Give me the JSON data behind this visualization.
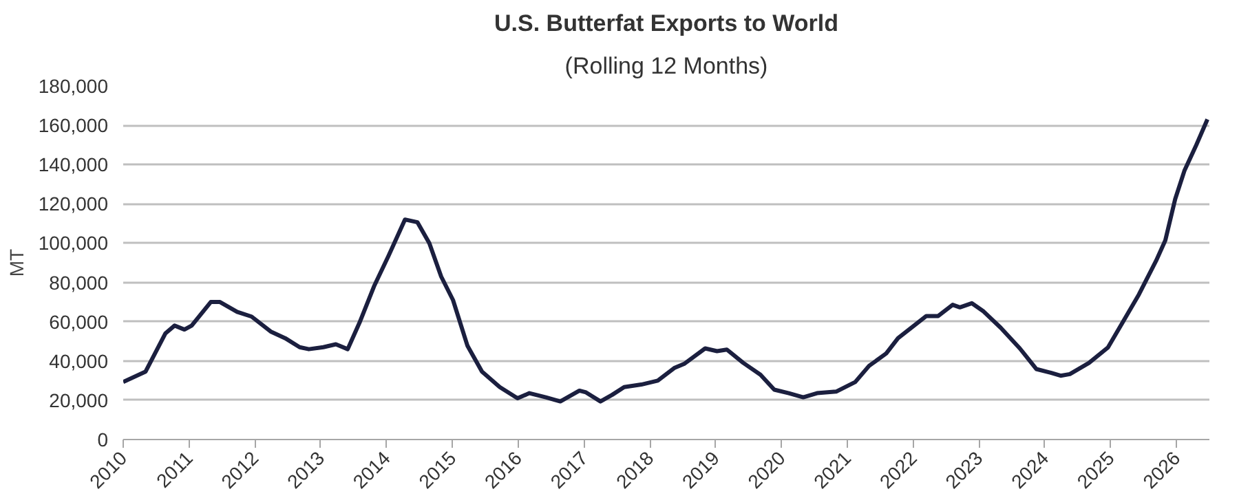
{
  "chart_data": {
    "type": "line",
    "title": "U.S. Butterfat Exports to World",
    "subtitle": "(Rolling 12 Months)",
    "ylabel": "MT",
    "xlim": [
      2010,
      2026.5
    ],
    "xticks": [
      2010,
      2011,
      2012,
      2013,
      2014,
      2015,
      2016,
      2017,
      2018,
      2019,
      2020,
      2021,
      2022,
      2023,
      2024,
      2025,
      2026
    ],
    "ylim": [
      0,
      180000
    ],
    "yticks": [
      0,
      {
        "value": 20000,
        "label": "20,000"
      },
      {
        "value": 40000,
        "label": "40,000"
      },
      {
        "value": 60000,
        "label": "60,000"
      },
      {
        "value": 80000,
        "label": "80,000"
      },
      {
        "value": 100000,
        "label": "100,000"
      },
      {
        "value": 120000,
        "label": "120,000"
      },
      {
        "value": 140000,
        "label": "140,000"
      },
      {
        "value": 160000,
        "label": "160,000"
      },
      {
        "value": 180000,
        "label": "180,000"
      }
    ],
    "grid": "y",
    "marker": "none",
    "line_style": "solid",
    "series": [
      {
        "color": "#1b1f3f",
        "x": [
          2010.0,
          2010.34,
          2010.64,
          2010.78,
          2010.93,
          2011.04,
          2011.33,
          2011.47,
          2011.73,
          2011.95,
          2012.24,
          2012.46,
          2012.68,
          2012.82,
          2013.04,
          2013.23,
          2013.41,
          2013.59,
          2013.81,
          2014.03,
          2014.28,
          2014.47,
          2014.65,
          2014.83,
          2015.01,
          2015.23,
          2015.45,
          2015.72,
          2015.99,
          2016.17,
          2016.42,
          2016.64,
          2016.93,
          2017.03,
          2017.25,
          2017.43,
          2017.61,
          2017.87,
          2018.12,
          2018.37,
          2018.52,
          2018.84,
          2019.02,
          2019.17,
          2019.42,
          2019.68,
          2019.89,
          2020.11,
          2020.33,
          2020.54,
          2020.83,
          2021.12,
          2021.33,
          2021.59,
          2021.77,
          2021.99,
          2022.2,
          2022.38,
          2022.6,
          2022.71,
          2022.89,
          2023.07,
          2023.33,
          2023.62,
          2023.87,
          2024.09,
          2024.24,
          2024.38,
          2024.67,
          2024.96,
          2025.18,
          2025.43,
          2025.69,
          2025.83,
          2025.98,
          2026.12,
          2026.3,
          2026.47
        ],
        "values": [
          29300,
          34600,
          54000,
          58000,
          56000,
          58000,
          70000,
          70000,
          65000,
          62600,
          55000,
          51600,
          47000,
          46000,
          47000,
          48500,
          46000,
          59500,
          78000,
          93500,
          112000,
          110600,
          100000,
          83000,
          71000,
          47700,
          34600,
          26700,
          21000,
          23600,
          21500,
          19400,
          24900,
          24000,
          19400,
          22800,
          26700,
          28000,
          30000,
          36400,
          38500,
          46400,
          45000,
          45800,
          39000,
          33000,
          25400,
          23600,
          21500,
          23600,
          24400,
          29300,
          37500,
          43800,
          51600,
          57400,
          62900,
          62900,
          68600,
          67300,
          69400,
          65200,
          56900,
          46400,
          35900,
          34000,
          32500,
          33300,
          39000,
          46900,
          59500,
          73900,
          91000,
          101400,
          122400,
          136800,
          149900,
          163000
        ]
      }
    ]
  }
}
